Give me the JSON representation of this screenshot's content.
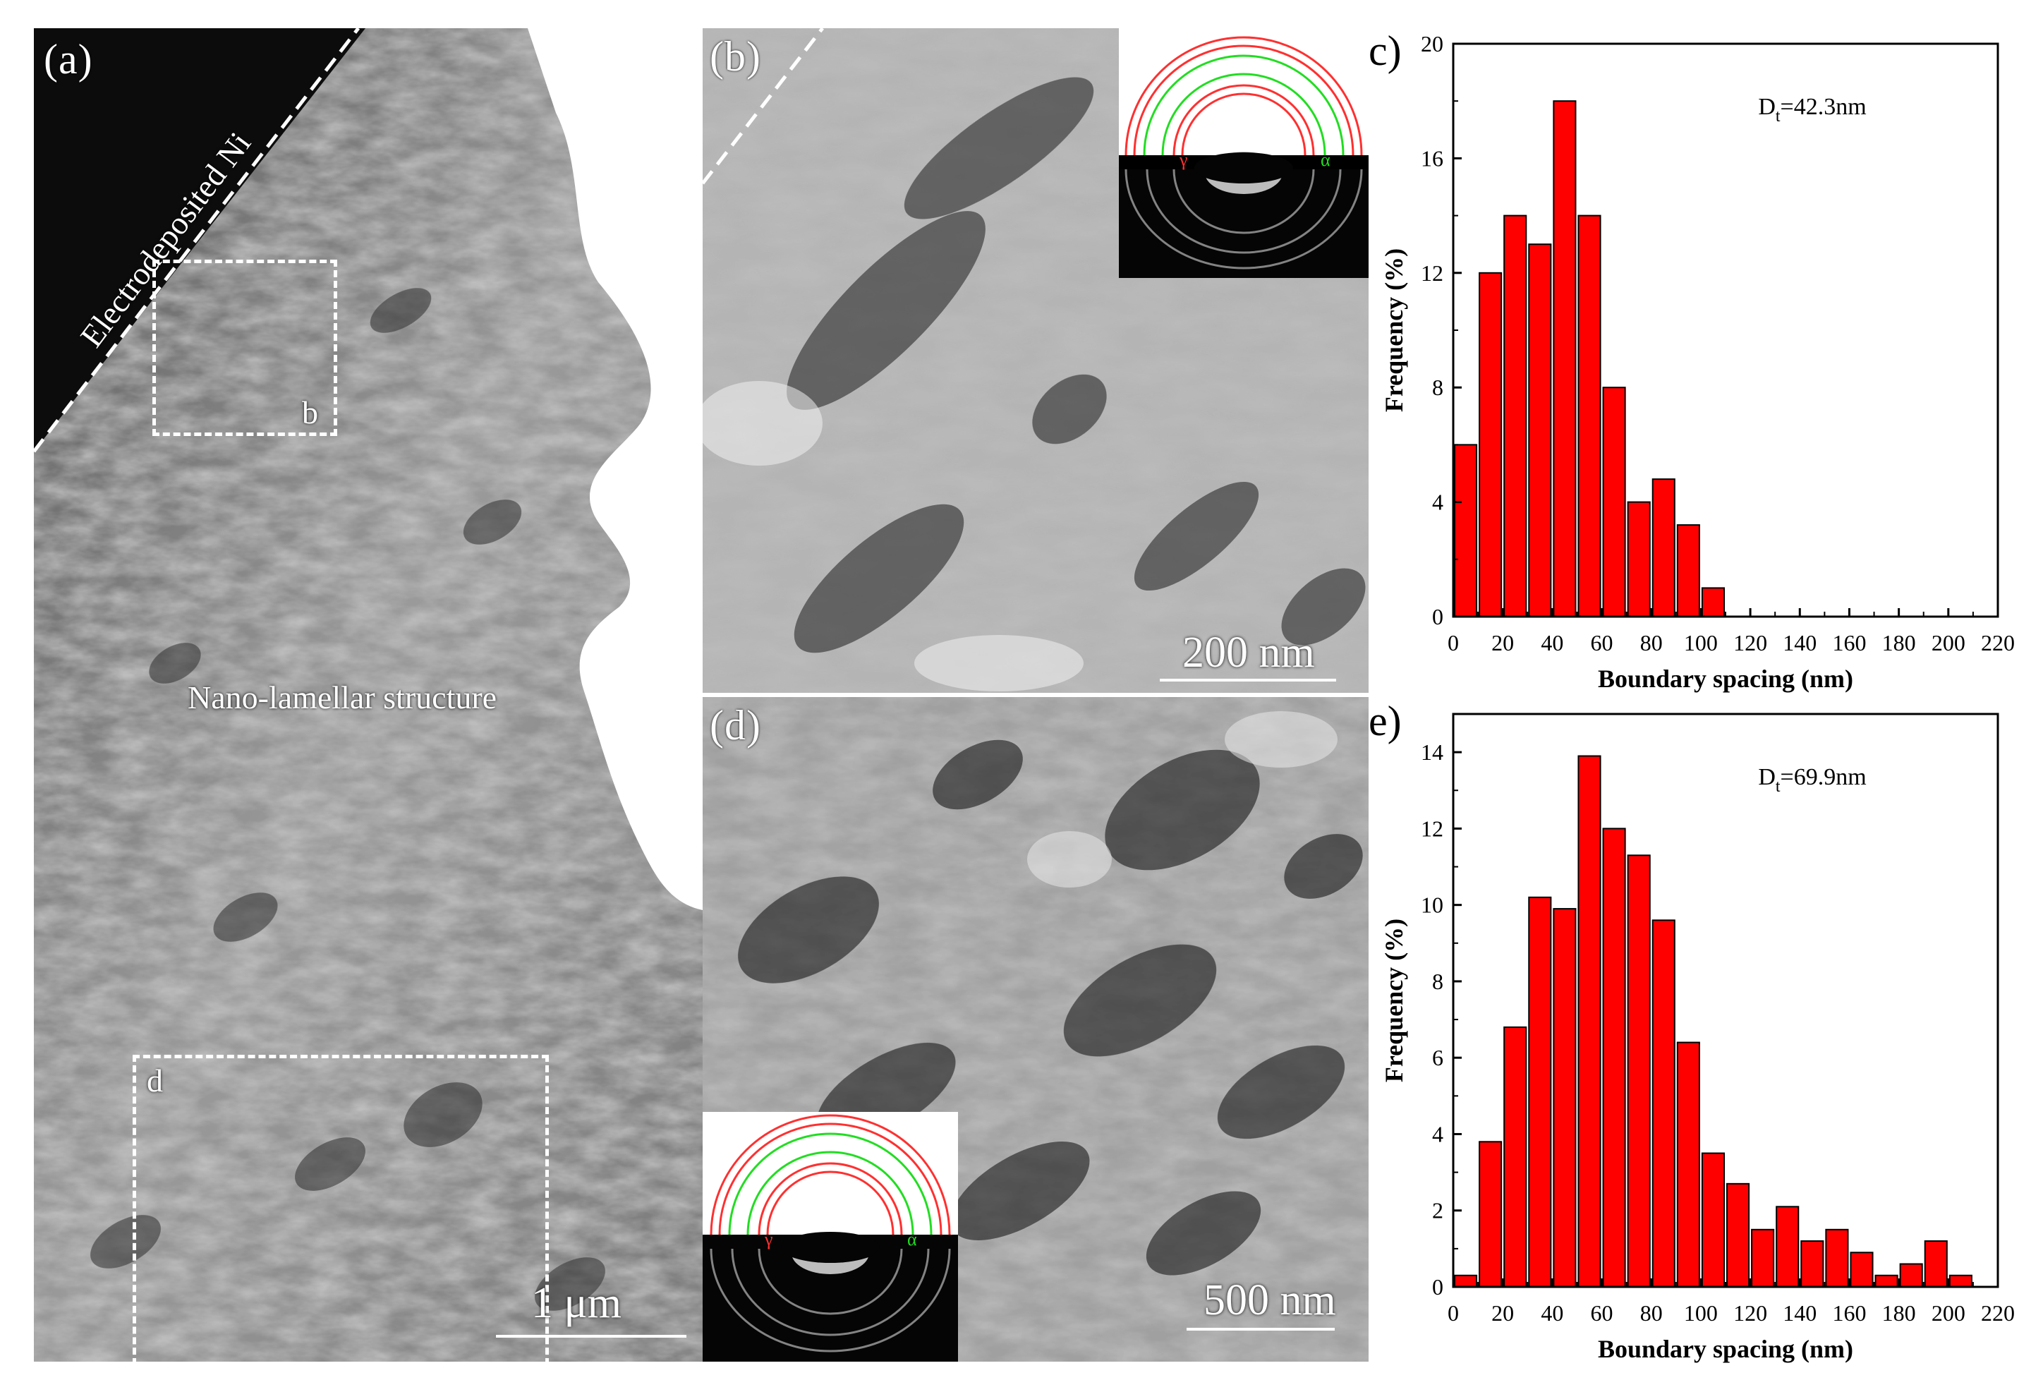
{
  "panels": {
    "a": {
      "label": "(a)",
      "ni_label": "Electrodeposited Ni",
      "region_label": "Nano-lamellar structure",
      "box_b_label": "b",
      "box_d_label": "d",
      "scale": "1 μm"
    },
    "b": {
      "label": "(b)",
      "scale": "200 nm",
      "gamma": "γ",
      "alpha": "α"
    },
    "d": {
      "label": "(d)",
      "scale": "500 nm",
      "gamma": "γ",
      "alpha": "α"
    },
    "c": {
      "label": "c)"
    },
    "e": {
      "label": "e)"
    }
  },
  "colors": {
    "bar": "#ff0000",
    "ring_red": "#ff3030",
    "ring_green": "#22dd22"
  },
  "chart_data": [
    {
      "type": "bar",
      "panel": "c",
      "annotation_main": "D",
      "annotation_sub": "t",
      "annotation_rest": "=42.3nm",
      "xlabel": "Boundary spacing (nm)",
      "ylabel": "Frequency (%)",
      "xlim": [
        0,
        220
      ],
      "ylim": [
        0,
        20
      ],
      "xticks": [
        0,
        20,
        40,
        60,
        80,
        100,
        120,
        140,
        160,
        180,
        200,
        220
      ],
      "yticks": [
        0,
        4,
        8,
        12,
        16,
        20
      ],
      "bin_width": 10,
      "x": [
        5,
        15,
        25,
        35,
        45,
        55,
        65,
        75,
        85,
        95,
        105
      ],
      "values": [
        6,
        12,
        14,
        13,
        18,
        14,
        8,
        4,
        4.8,
        3.2,
        1
      ]
    },
    {
      "type": "bar",
      "panel": "e",
      "annotation_main": "D",
      "annotation_sub": "t",
      "annotation_rest": "=69.9nm",
      "xlabel": "Boundary spacing (nm)",
      "ylabel": "Frequency (%)",
      "xlim": [
        0,
        220
      ],
      "ylim": [
        0,
        15
      ],
      "xticks": [
        0,
        20,
        40,
        60,
        80,
        100,
        120,
        140,
        160,
        180,
        200,
        220
      ],
      "yticks": [
        0,
        2,
        4,
        6,
        8,
        10,
        12,
        14
      ],
      "bin_width": 10,
      "x": [
        5,
        15,
        25,
        35,
        45,
        55,
        65,
        75,
        85,
        95,
        105,
        115,
        125,
        135,
        145,
        155,
        165,
        175,
        185,
        195,
        205
      ],
      "values": [
        0.3,
        3.8,
        6.8,
        10.2,
        9.9,
        13.9,
        12.0,
        11.3,
        9.6,
        6.4,
        3.5,
        2.7,
        1.5,
        2.1,
        1.2,
        1.5,
        0.9,
        0.3,
        0.6,
        1.2,
        0.3
      ]
    }
  ]
}
